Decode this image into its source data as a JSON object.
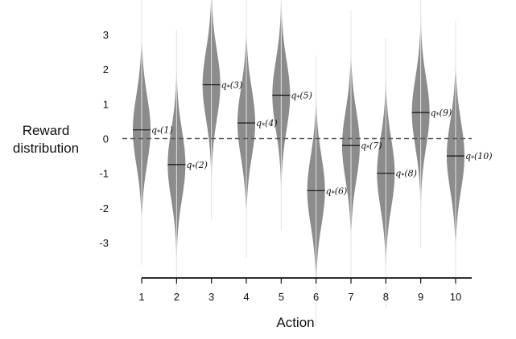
{
  "chart_data": {
    "type": "violin",
    "xlabel": "Action",
    "ylabel_lines": [
      "Reward",
      "distribution"
    ],
    "x": [
      1,
      2,
      3,
      4,
      5,
      6,
      7,
      8,
      9,
      10
    ],
    "x_tick_labels": [
      "1",
      "2",
      "3",
      "4",
      "5",
      "6",
      "7",
      "8",
      "9",
      "10"
    ],
    "means": [
      0.25,
      -0.75,
      1.55,
      0.45,
      1.25,
      -1.5,
      -0.2,
      -1.0,
      0.75,
      -0.5
    ],
    "mean_labels": [
      "q*(1)",
      "q*(2)",
      "q*(3)",
      "q*(4)",
      "q*(5)",
      "q*(6)",
      "q*(7)",
      "q*(8)",
      "q*(9)",
      "q*(10)"
    ],
    "distribution_sd": 1,
    "y_ticks": [
      3,
      2,
      1,
      0,
      -1,
      -2,
      -3
    ],
    "y_tick_labels": [
      "3",
      "2",
      "1",
      "0",
      "-1",
      "-2",
      "-3"
    ],
    "ylim": [
      -4,
      4
    ],
    "reference_line": {
      "y": 0,
      "style": "dashed"
    },
    "grid": false,
    "colors": {
      "violin": "#8c8c8c",
      "mean_line": "#111111",
      "axis": "#111111",
      "reference": "#555555"
    }
  }
}
